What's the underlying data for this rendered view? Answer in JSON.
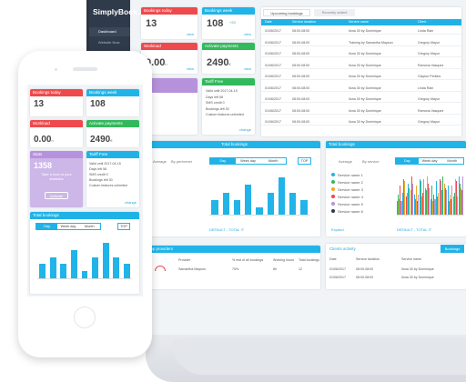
{
  "brand": {
    "logo": "SimplyBook.me"
  },
  "sidebar": {
    "items": [
      "Dashboard",
      "Website Now",
      "Calendar"
    ]
  },
  "cards": {
    "today": {
      "title": "Bookings today",
      "value": "13",
      "link": "view"
    },
    "week": {
      "title": "Bookings week",
      "value": "108",
      "delta": "+23",
      "link": "view"
    },
    "workload": {
      "title": "Workload",
      "value": "0.00",
      "unit": "h",
      "link": "view"
    },
    "payments": {
      "title": "Activate payments",
      "value": "2490",
      "unit": "€",
      "delta": "+9",
      "link": "view"
    },
    "tariff": {
      "title": "Tariff Free",
      "rows": [
        [
          "Valid until",
          "2017-04-15"
        ],
        [
          "Days left",
          "58"
        ],
        [
          "SMS credit",
          "0"
        ],
        [
          "Bookings left",
          "30"
        ],
        [
          "Custom features",
          "unlimited"
        ]
      ],
      "link": "change"
    },
    "stats": {
      "value": "1358",
      "label": "Stats"
    }
  },
  "phone_stats": {
    "text": "Take a look at your statistics",
    "button": "Activate"
  },
  "tabs": {
    "upcoming": "Upcoming bookings",
    "recent": "Recently added"
  },
  "upcoming": {
    "headers": [
      "Date",
      "Service duration",
      "Service name",
      "Client"
    ],
    "rows": [
      [
        "01/06/2017",
        "08:00-08:00",
        "Ilona 30 by Dominique",
        "Linda Rain"
      ],
      [
        "01/06/2017",
        "08:00-08:00",
        "Training by Samantha Mayson",
        "Gregory Mayor"
      ],
      [
        "01/06/2017",
        "08:00-08:00",
        "Ilona 30 by Dominique",
        "Gregory Mayor"
      ],
      [
        "01/06/2017",
        "08:00-08:00",
        "Ilona 30 by Dominique",
        "Ramona Vasquez"
      ],
      [
        "01/06/2017",
        "08:00-08:00",
        "Ilona 30 by Dominique",
        "Clayton Perkins"
      ],
      [
        "01/06/2017",
        "08:00-08:00",
        "Ilona 30 by Dominique",
        "Linda Rain"
      ],
      [
        "01/06/2017",
        "08:00-08:00",
        "Ilona 30 by Dominique",
        "Gregory Mayor"
      ],
      [
        "01/06/2017",
        "08:00-08:00",
        "Ilona 30 by Dominique",
        "Ramona Vasquez"
      ],
      [
        "01/06/2017",
        "08:00-08:00",
        "Ilona 30 by Dominique",
        "Gregory Mayor"
      ]
    ]
  },
  "total_bookings": {
    "title": "Total bookings",
    "average": "Average",
    "by": "By performer",
    "tabs": [
      "Day",
      "Week day",
      "Month"
    ],
    "top": "TOP",
    "footer": "DEFAULT - TOTAL IT"
  },
  "services": {
    "title": "Total bookings",
    "average": "Average",
    "by": "By service",
    "items": [
      "Service name 1",
      "Service name 2",
      "Service name 3",
      "Service name 4",
      "Service name 5",
      "Service name 6"
    ],
    "tabs": [
      "Day",
      "Week day",
      "Month"
    ],
    "expand": "Expand",
    "footer": "DEFAULT - TOTAL IT"
  },
  "providers": {
    "title": "Top providers",
    "headers": [
      "Provider",
      "% rest of all bookings",
      "Working hours",
      "Total bookings"
    ],
    "row": [
      "Samantha Mayson",
      "75%",
      "8h",
      "12"
    ]
  },
  "client_activity": {
    "title": "Clients activity",
    "button": "Bookings",
    "headers": [
      "Date",
      "Service duration",
      "Service name"
    ],
    "rows": [
      [
        "01/06/2017",
        "08:00-08:00",
        "Ilona 30 by Dominique"
      ],
      [
        "01/06/2017",
        "08:00-08:00",
        "Ilona 30 by Dominique"
      ]
    ]
  },
  "chart_data": {
    "type": "bar",
    "values": [
      2,
      3,
      2,
      4,
      1,
      3,
      5,
      3,
      2
    ]
  },
  "colors": {
    "accent": "#21b4e8",
    "red": "#ee4a4d",
    "green": "#32b95c",
    "purple": "#b792dc"
  }
}
